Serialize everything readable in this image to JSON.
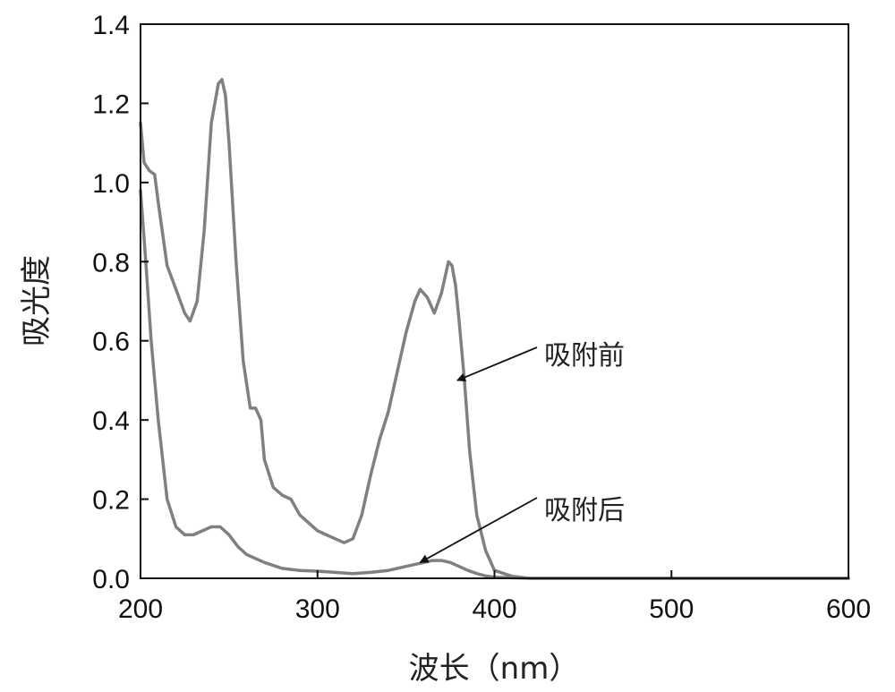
{
  "chart_data": {
    "type": "line",
    "title": "",
    "xlabel": "波长（nm）",
    "ylabel": "吸光度",
    "xlim": [
      200,
      600
    ],
    "ylim": [
      0,
      1.4
    ],
    "xticks": [
      200,
      300,
      400,
      500,
      600
    ],
    "yticks": [
      0.0,
      0.2,
      0.4,
      0.6,
      0.8,
      1.0,
      1.2,
      1.4
    ],
    "xtick_labels": [
      "200",
      "300",
      "400",
      "500",
      "600"
    ],
    "ytick_labels": [
      "0.0",
      "0.2",
      "0.4",
      "0.6",
      "0.8",
      "1.0",
      "1.2",
      "1.4"
    ],
    "grid": false,
    "legend": "none",
    "line_color": "#808080",
    "series": [
      {
        "x": [
          200,
          202,
          205,
          208,
          210,
          215,
          220,
          225,
          228,
          232,
          236,
          240,
          244,
          246,
          248,
          250,
          254,
          258,
          262,
          265,
          268,
          270,
          275,
          280,
          285,
          290,
          295,
          300,
          305,
          310,
          315,
          320,
          325,
          330,
          335,
          340,
          345,
          350,
          355,
          358,
          362,
          366,
          370,
          374,
          376,
          378,
          380,
          383,
          386,
          390,
          395,
          400,
          410,
          420,
          450,
          500,
          550,
          600
        ],
        "y": [
          1.15,
          1.05,
          1.03,
          1.02,
          0.95,
          0.79,
          0.73,
          0.67,
          0.65,
          0.7,
          0.88,
          1.15,
          1.25,
          1.26,
          1.22,
          1.1,
          0.8,
          0.55,
          0.43,
          0.43,
          0.4,
          0.3,
          0.23,
          0.21,
          0.2,
          0.16,
          0.14,
          0.12,
          0.11,
          0.1,
          0.09,
          0.1,
          0.16,
          0.26,
          0.35,
          0.42,
          0.52,
          0.62,
          0.7,
          0.73,
          0.71,
          0.67,
          0.72,
          0.8,
          0.79,
          0.74,
          0.65,
          0.5,
          0.32,
          0.16,
          0.07,
          0.02,
          0.005,
          0.0,
          0.0,
          0.0,
          0.0,
          0.0
        ]
      },
      {
        "x": [
          200,
          203,
          206,
          210,
          215,
          220,
          225,
          230,
          235,
          240,
          245,
          250,
          255,
          260,
          270,
          280,
          290,
          300,
          310,
          320,
          330,
          340,
          350,
          360,
          365,
          370,
          375,
          380,
          385,
          390,
          395,
          400,
          420,
          450,
          500,
          550,
          600
        ],
        "y": [
          0.98,
          0.8,
          0.6,
          0.4,
          0.2,
          0.13,
          0.11,
          0.11,
          0.12,
          0.13,
          0.13,
          0.11,
          0.08,
          0.06,
          0.04,
          0.025,
          0.02,
          0.018,
          0.015,
          0.012,
          0.015,
          0.02,
          0.03,
          0.04,
          0.045,
          0.045,
          0.04,
          0.03,
          0.02,
          0.012,
          0.006,
          0.003,
          0.0,
          0.0,
          0.0,
          0.0,
          0.0
        ]
      }
    ],
    "annotations": [
      {
        "text": "吸附前",
        "point_x": 379,
        "point_y": 0.5
      },
      {
        "text": "吸附后",
        "point_x": 358,
        "point_y": 0.04
      }
    ]
  }
}
